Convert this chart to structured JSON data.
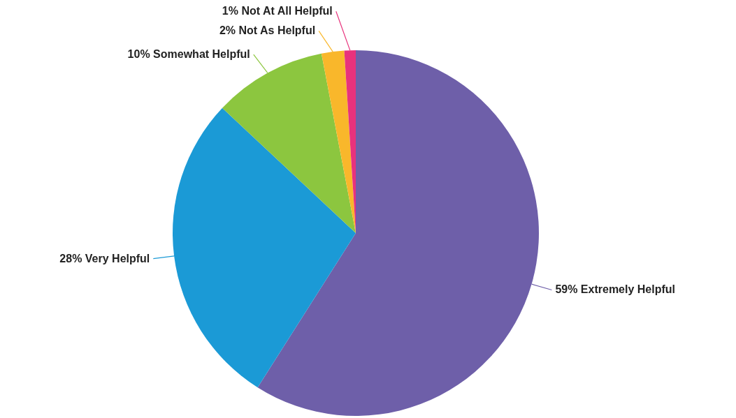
{
  "chart_data": {
    "type": "pie",
    "categories": [
      "Extremely Helpful",
      "Very Helpful",
      "Somewhat Helpful",
      "Not As Helpful",
      "Not At All Helpful"
    ],
    "values": [
      59,
      28,
      10,
      2,
      1
    ],
    "value_labels": [
      "59%",
      "28%",
      "10%",
      "2%",
      "1%"
    ],
    "colors": [
      "#6e5fa9",
      "#1b9ad6",
      "#8cc63f",
      "#f9b72b",
      "#e8327c"
    ]
  }
}
